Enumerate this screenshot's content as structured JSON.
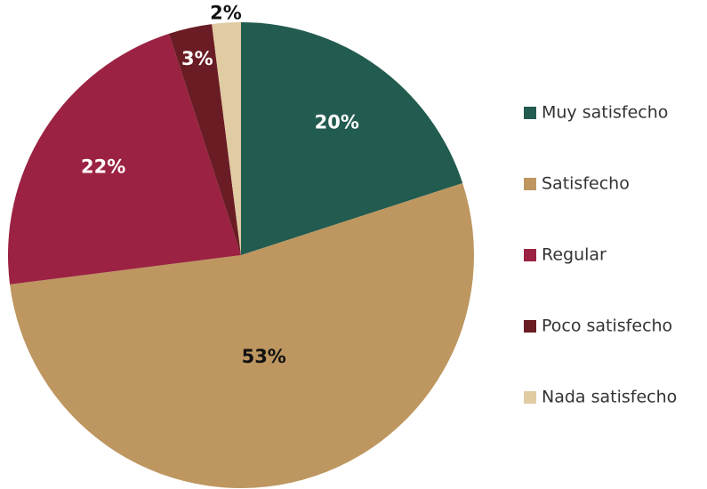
{
  "chart_data": {
    "type": "pie",
    "categories": [
      "Muy satisfecho",
      "Satisfecho",
      "Regular",
      "Poco satisfecho",
      "Nada satisfecho"
    ],
    "values": [
      20,
      53,
      22,
      3,
      2
    ],
    "value_labels": [
      "20%",
      "53%",
      "22%",
      "3%",
      "2%"
    ],
    "colors": [
      "#225b4f",
      "#bd9660",
      "#9b2242",
      "#6a1c24",
      "#e0cba3"
    ],
    "legend": "right"
  }
}
